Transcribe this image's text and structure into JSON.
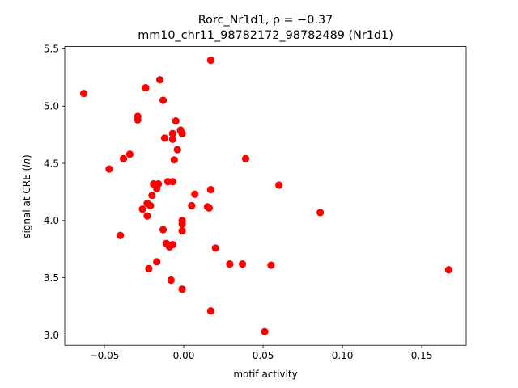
{
  "chart_data": {
    "type": "scatter",
    "title_prefix": "Rorc_Nr1d1, ",
    "title_rho": "ρ = −0.37",
    "subtitle": "mm10_chr11_98782172_98782489 (Nr1d1)",
    "xlabel": "motif activity",
    "ylabel_prefix": "signal at CRE (",
    "ylabel_italic": "ln",
    "ylabel_suffix": ")",
    "xlim": [
      -0.075,
      0.178
    ],
    "ylim": [
      2.91,
      5.52
    ],
    "xticks": [
      -0.05,
      0.0,
      0.05,
      0.1,
      0.15
    ],
    "xtick_labels": [
      "−0.05",
      "0.00",
      "0.05",
      "0.10",
      "0.15"
    ],
    "yticks": [
      3.0,
      3.5,
      4.0,
      4.5,
      5.0,
      5.5
    ],
    "ytick_labels": [
      "3.0",
      "3.5",
      "4.0",
      "4.5",
      "5.0",
      "5.5"
    ],
    "marker_color": "#ff0000",
    "points": [
      {
        "x": -0.063,
        "y": 5.11
      },
      {
        "x": 0.017,
        "y": 5.4
      },
      {
        "x": -0.024,
        "y": 5.16
      },
      {
        "x": -0.015,
        "y": 5.23
      },
      {
        "x": -0.013,
        "y": 5.05
      },
      {
        "x": -0.029,
        "y": 4.91
      },
      {
        "x": -0.029,
        "y": 4.88
      },
      {
        "x": -0.005,
        "y": 4.87
      },
      {
        "x": -0.002,
        "y": 4.79
      },
      {
        "x": -0.001,
        "y": 4.76
      },
      {
        "x": -0.007,
        "y": 4.76
      },
      {
        "x": -0.012,
        "y": 4.72
      },
      {
        "x": -0.007,
        "y": 4.71
      },
      {
        "x": -0.004,
        "y": 4.62
      },
      {
        "x": -0.034,
        "y": 4.58
      },
      {
        "x": -0.038,
        "y": 4.54
      },
      {
        "x": -0.006,
        "y": 4.53
      },
      {
        "x": 0.039,
        "y": 4.54
      },
      {
        "x": -0.047,
        "y": 4.45
      },
      {
        "x": -0.01,
        "y": 4.34
      },
      {
        "x": -0.007,
        "y": 4.34
      },
      {
        "x": -0.019,
        "y": 4.32
      },
      {
        "x": -0.016,
        "y": 4.32
      },
      {
        "x": -0.017,
        "y": 4.28
      },
      {
        "x": 0.06,
        "y": 4.31
      },
      {
        "x": 0.017,
        "y": 4.27
      },
      {
        "x": 0.007,
        "y": 4.23
      },
      {
        "x": -0.02,
        "y": 4.22
      },
      {
        "x": -0.023,
        "y": 4.15
      },
      {
        "x": -0.021,
        "y": 4.13
      },
      {
        "x": 0.005,
        "y": 4.13
      },
      {
        "x": 0.015,
        "y": 4.12
      },
      {
        "x": 0.016,
        "y": 4.11
      },
      {
        "x": -0.026,
        "y": 4.1
      },
      {
        "x": 0.086,
        "y": 4.07
      },
      {
        "x": -0.023,
        "y": 4.04
      },
      {
        "x": -0.001,
        "y": 4.0
      },
      {
        "x": -0.001,
        "y": 3.97
      },
      {
        "x": -0.013,
        "y": 3.92
      },
      {
        "x": -0.001,
        "y": 3.91
      },
      {
        "x": -0.04,
        "y": 3.87
      },
      {
        "x": -0.011,
        "y": 3.8
      },
      {
        "x": -0.007,
        "y": 3.79
      },
      {
        "x": -0.009,
        "y": 3.77
      },
      {
        "x": 0.02,
        "y": 3.76
      },
      {
        "x": -0.017,
        "y": 3.64
      },
      {
        "x": 0.029,
        "y": 3.62
      },
      {
        "x": 0.037,
        "y": 3.62
      },
      {
        "x": 0.055,
        "y": 3.61
      },
      {
        "x": -0.022,
        "y": 3.58
      },
      {
        "x": 0.167,
        "y": 3.57
      },
      {
        "x": -0.008,
        "y": 3.48
      },
      {
        "x": -0.001,
        "y": 3.4
      },
      {
        "x": 0.017,
        "y": 3.21
      },
      {
        "x": 0.051,
        "y": 3.03
      }
    ]
  }
}
